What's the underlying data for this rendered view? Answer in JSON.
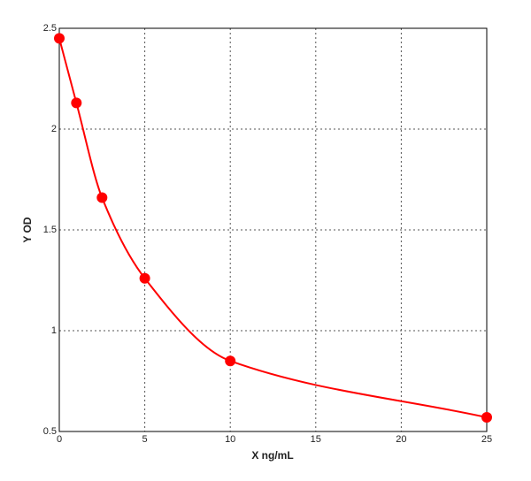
{
  "chart_data": {
    "type": "scatter",
    "x_label": "X ng/mL",
    "y_label": "Y OD",
    "series": [
      {
        "color": "#ff0000",
        "x": [
          0,
          1,
          2.5,
          5,
          10,
          25
        ],
        "values": [
          2.45,
          2.13,
          1.66,
          1.26,
          0.85,
          0.57
        ]
      }
    ],
    "curve": "smooth",
    "xlim": [
      0,
      25
    ],
    "xticks": [
      0,
      5,
      10,
      15,
      20,
      25
    ],
    "ylim": [
      0.5,
      2.5
    ],
    "yticks": [
      0.5,
      1,
      1.5,
      2,
      2.5
    ],
    "grid": true
  }
}
